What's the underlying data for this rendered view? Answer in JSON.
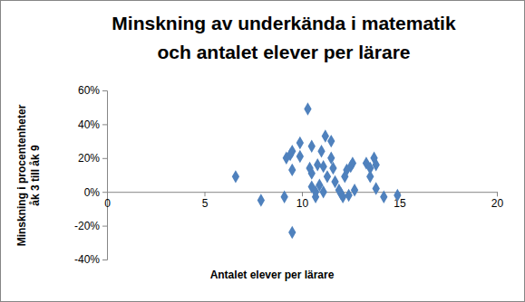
{
  "chart_data": {
    "type": "scatter",
    "title": [
      "Minskning av underkända i matematik",
      "och antalet elever per lärare"
    ],
    "xlabel": "Antalet elever per lärare",
    "ylabel": [
      "Minskning i procentenheter",
      "åk 3 till åk 9"
    ],
    "color": "#4f81bd",
    "marker": "diamond",
    "grid": false,
    "xlim": [
      0,
      20
    ],
    "xticks": [
      0,
      5,
      10,
      15,
      20
    ],
    "ylim": [
      -40,
      60
    ],
    "yticks": [
      {
        "value": -40,
        "label": "-40%"
      },
      {
        "value": -20,
        "label": "-20%"
      },
      {
        "value": 0,
        "label": "0%"
      },
      {
        "value": 20,
        "label": "20%"
      },
      {
        "value": 40,
        "label": "40%"
      },
      {
        "value": 60,
        "label": "60%"
      }
    ],
    "x": [
      6.6,
      7.9,
      10.3,
      9.9,
      9.5,
      9.4,
      9.9,
      9.2,
      9.5,
      9.1,
      9.5,
      10.5,
      11.0,
      11.2,
      11.5,
      10.8,
      10.4,
      10.5,
      10.5,
      10.7,
      10.7,
      10.9,
      11.1,
      11.3,
      11.5,
      11.6,
      11.7,
      11.9,
      12.0,
      12.1,
      12.2,
      12.4,
      12.5,
      12.6,
      12.7,
      13.3,
      13.5,
      13.7,
      13.8,
      13.5,
      13.8,
      14.2,
      14.9,
      11.1,
      12.3
    ],
    "values": [
      9,
      -5,
      49,
      29,
      24,
      22,
      21,
      20,
      13,
      -3,
      -24,
      27,
      24,
      33,
      30,
      16,
      14,
      11,
      3,
      0,
      -3,
      4,
      0,
      9,
      20,
      14,
      6,
      1,
      -1,
      -3,
      9,
      -2,
      15,
      17,
      1,
      17,
      14,
      20,
      16,
      9,
      2,
      -3,
      -2,
      15,
      13
    ]
  }
}
